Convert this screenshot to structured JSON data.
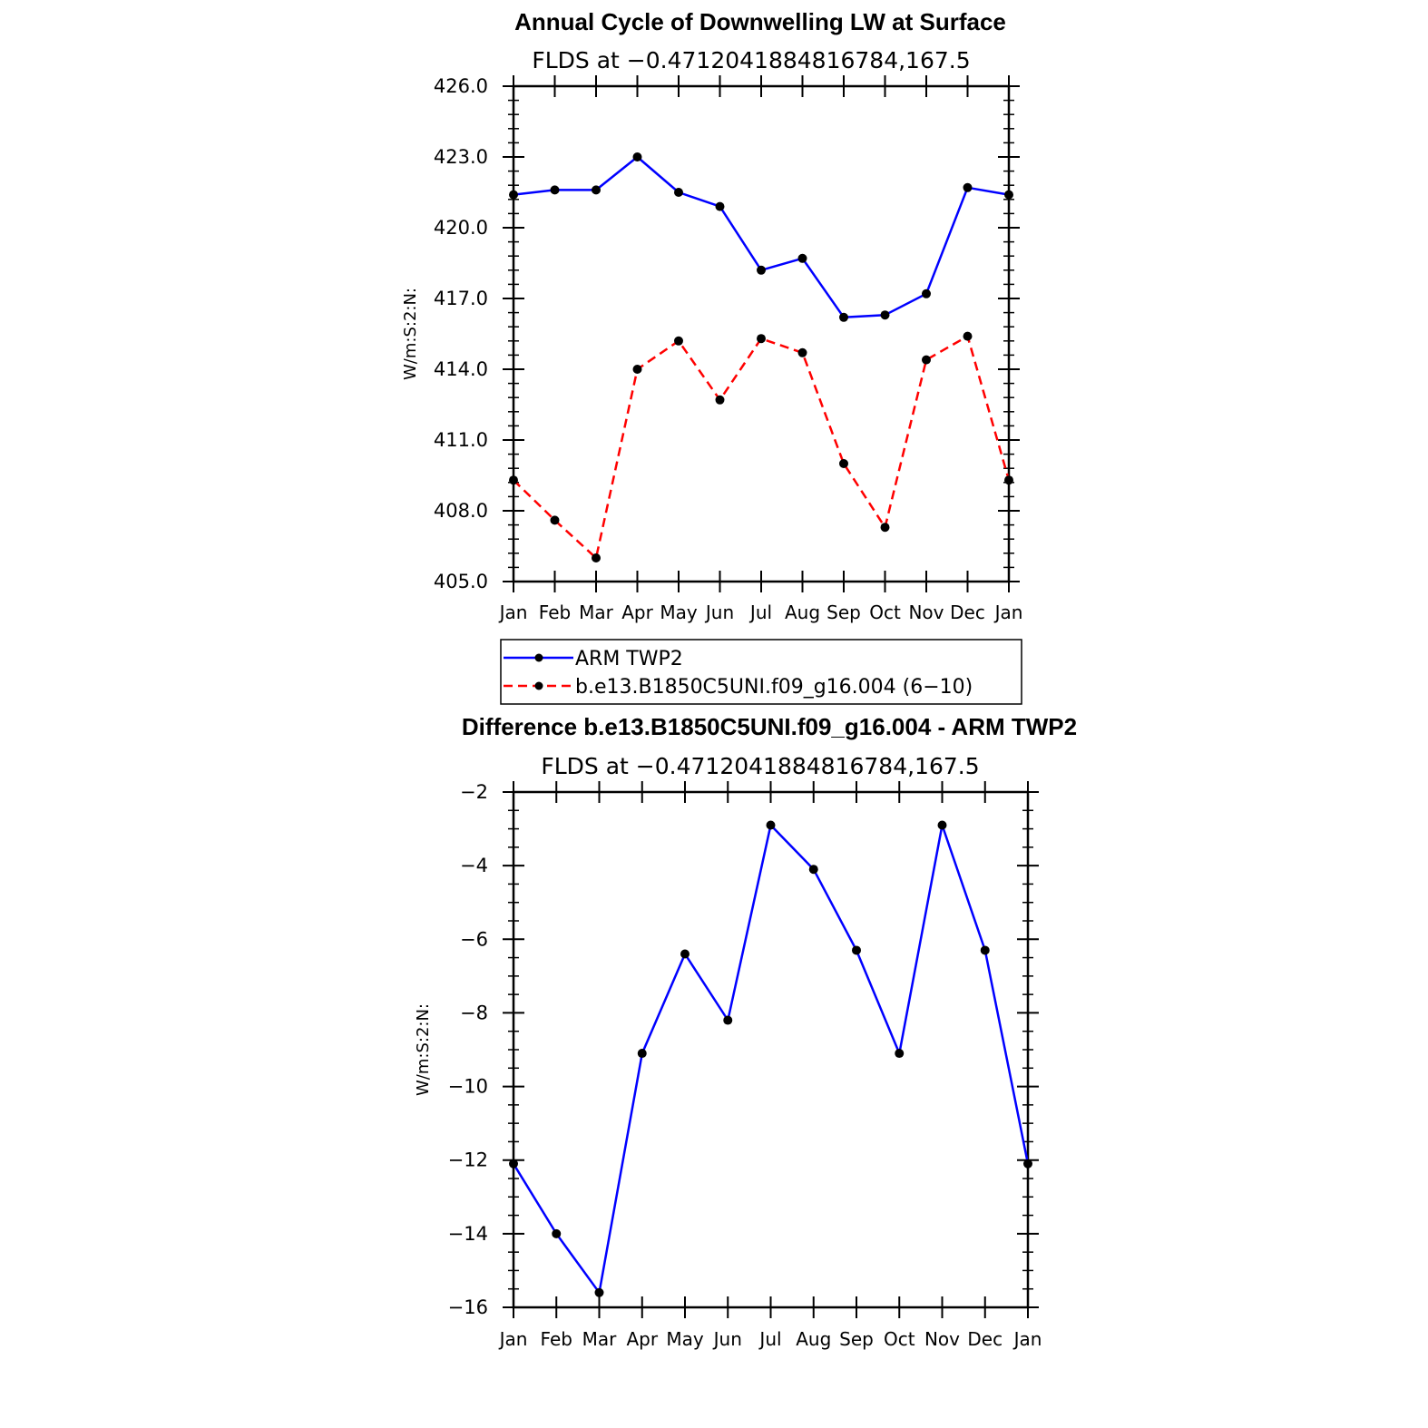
{
  "chart_data": [
    {
      "type": "line",
      "title": "Annual Cycle of Downwelling LW at Surface",
      "subtitle": "FLDS at −0.4712041884816784,167.5",
      "ylabel": "W/m:S:2:N:",
      "xlabel": "",
      "categories": [
        "Jan",
        "Feb",
        "Mar",
        "Apr",
        "May",
        "Jun",
        "Jul",
        "Aug",
        "Sep",
        "Oct",
        "Nov",
        "Dec",
        "Jan"
      ],
      "ylim": [
        405.0,
        426.0
      ],
      "yticks": [
        "405.0",
        "408.0",
        "411.0",
        "414.0",
        "417.0",
        "420.0",
        "423.0",
        "426.0"
      ],
      "grid": false,
      "legend_position": "below",
      "series": [
        {
          "name": "ARM TWP2",
          "color": "#0000ff",
          "dash": "solid",
          "values": [
            421.4,
            421.6,
            421.6,
            423.0,
            421.5,
            420.9,
            418.2,
            418.7,
            416.2,
            416.3,
            417.2,
            421.7,
            421.4
          ]
        },
        {
          "name": "b.e13.B1850C5UNI.f09_g16.004 (6−10)",
          "color": "#ff0000",
          "dash": "dashed",
          "values": [
            409.3,
            407.6,
            406.0,
            414.0,
            415.2,
            412.7,
            415.3,
            414.7,
            410.0,
            407.3,
            414.4,
            415.4,
            409.3
          ]
        }
      ]
    },
    {
      "type": "line",
      "title": "Difference b.e13.B1850C5UNI.f09_g16.004 - ARM TWP2",
      "subtitle": "FLDS at −0.4712041884816784,167.5",
      "ylabel": "W/m:S:2:N:",
      "xlabel": "",
      "categories": [
        "Jan",
        "Feb",
        "Mar",
        "Apr",
        "May",
        "Jun",
        "Jul",
        "Aug",
        "Sep",
        "Oct",
        "Nov",
        "Dec",
        "Jan"
      ],
      "ylim": [
        -16,
        -2
      ],
      "yticks": [
        "−16",
        "−14",
        "−12",
        "−10",
        "−8",
        "−6",
        "−4",
        "−2"
      ],
      "grid": false,
      "series": [
        {
          "color": "#0000ff",
          "dash": "solid",
          "values": [
            -12.1,
            -14.0,
            -15.6,
            -9.1,
            -6.4,
            -8.2,
            -2.9,
            -4.1,
            -6.3,
            -9.1,
            -2.9,
            -6.3,
            -12.1
          ]
        }
      ]
    }
  ]
}
